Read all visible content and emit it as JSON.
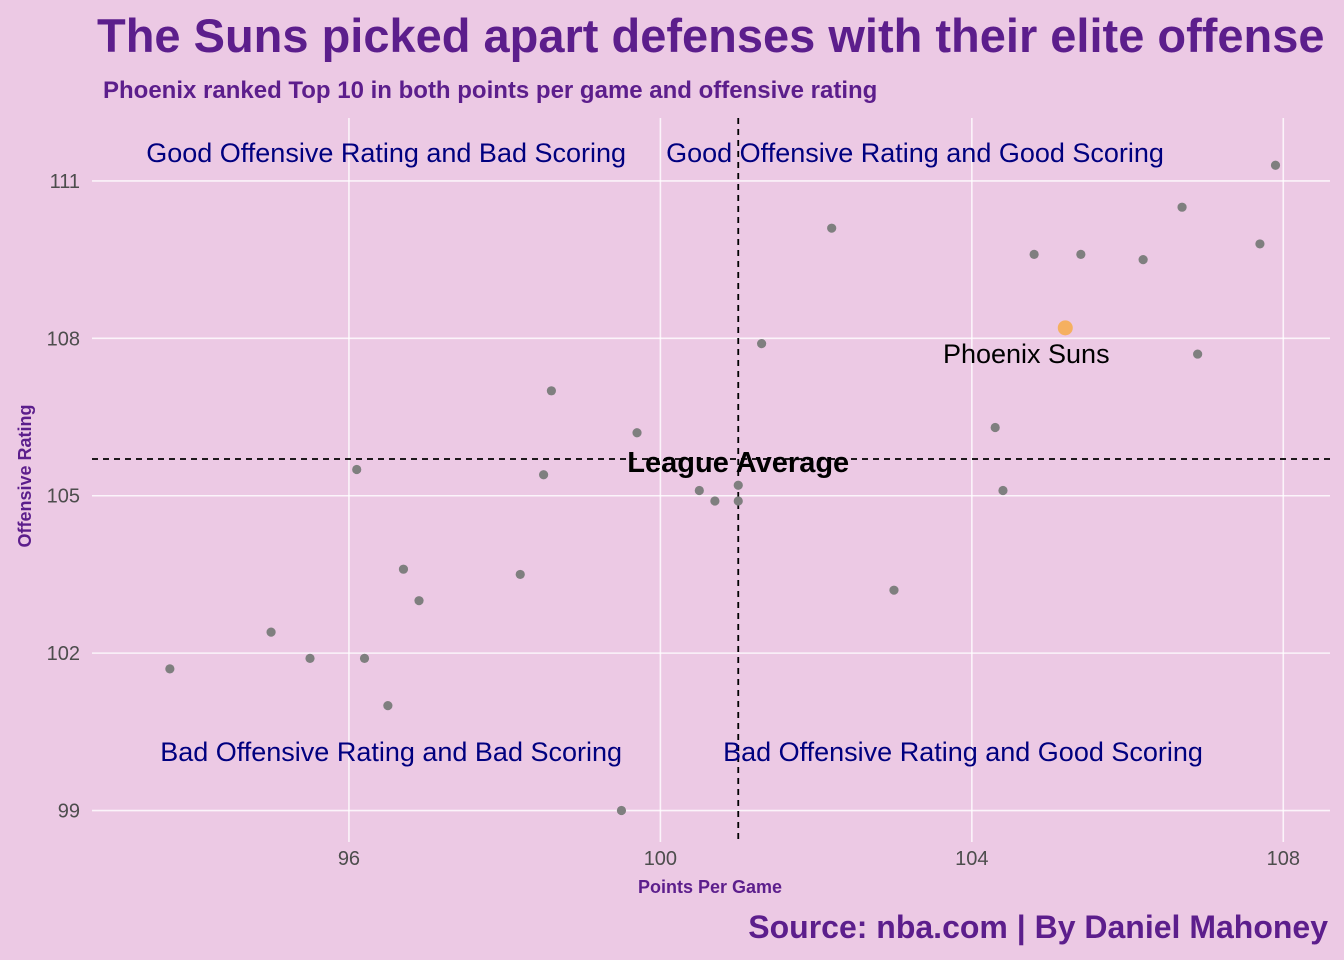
{
  "chart_data": {
    "type": "scatter",
    "title": "The Suns picked apart defenses with their elite offense",
    "subtitle": "Phoenix ranked Top 10 in both points per game and offensive rating",
    "caption": "Source: nba.com | By Daniel Mahoney",
    "xlabel": "Points Per Game",
    "ylabel": "Offensive Rating",
    "xlim": [
      92.7,
      108.6
    ],
    "ylim": [
      98.4,
      112.2
    ],
    "x_ticks": [
      96,
      100,
      104,
      108
    ],
    "y_ticks": [
      99,
      102,
      105,
      108,
      111
    ],
    "grid": true,
    "point_color": "#7f7f7f",
    "highlight_color": "#f5b060",
    "reference_lines": {
      "x": 101.0,
      "y": 105.7,
      "label": "League Average"
    },
    "quadrant_labels": {
      "top_left": "Good Offensive Rating and Bad Scoring",
      "top_right": "Good Offensive Rating and Good Scoring",
      "bottom_left": "Bad Offensive Rating and Bad Scoring",
      "bottom_right": "Bad Offensive Rating and Good Scoring"
    },
    "highlight": {
      "label": "Phoenix Suns",
      "x": 105.2,
      "y": 108.2
    },
    "points": [
      {
        "x": 107.9,
        "y": 111.3
      },
      {
        "x": 106.7,
        "y": 110.5
      },
      {
        "x": 107.7,
        "y": 109.8
      },
      {
        "x": 104.8,
        "y": 109.6
      },
      {
        "x": 105.4,
        "y": 109.6
      },
      {
        "x": 106.2,
        "y": 109.5
      },
      {
        "x": 102.2,
        "y": 110.1
      },
      {
        "x": 101.3,
        "y": 107.9
      },
      {
        "x": 106.9,
        "y": 107.7
      },
      {
        "x": 104.3,
        "y": 106.3
      },
      {
        "x": 104.4,
        "y": 105.1
      },
      {
        "x": 103.0,
        "y": 103.2
      },
      {
        "x": 101.0,
        "y": 105.2
      },
      {
        "x": 101.0,
        "y": 104.9
      },
      {
        "x": 100.5,
        "y": 105.1
      },
      {
        "x": 100.7,
        "y": 104.9
      },
      {
        "x": 99.7,
        "y": 106.2
      },
      {
        "x": 98.6,
        "y": 107.0
      },
      {
        "x": 98.5,
        "y": 105.4
      },
      {
        "x": 98.2,
        "y": 103.5
      },
      {
        "x": 99.5,
        "y": 99.0
      },
      {
        "x": 96.1,
        "y": 105.5
      },
      {
        "x": 96.7,
        "y": 103.6
      },
      {
        "x": 96.9,
        "y": 103.0
      },
      {
        "x": 96.2,
        "y": 101.9
      },
      {
        "x": 96.5,
        "y": 101.0
      },
      {
        "x": 95.0,
        "y": 102.4
      },
      {
        "x": 95.5,
        "y": 101.9
      },
      {
        "x": 93.7,
        "y": 101.7
      }
    ]
  }
}
